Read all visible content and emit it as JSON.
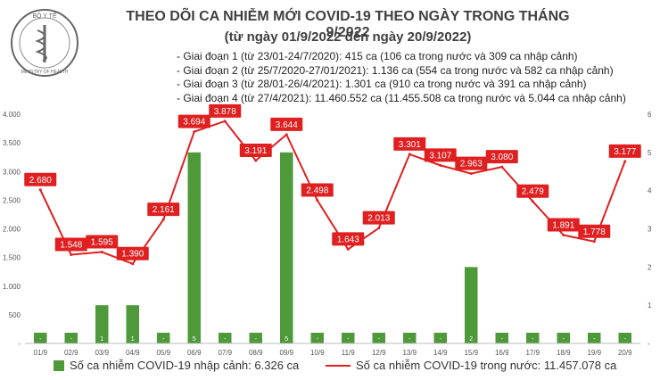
{
  "header": {
    "title": "THEO DÕI CA NHIỄM MỚI COVID-19 THEO NGÀY TRONG THÁNG 9/2022",
    "subtitle": "(từ ngày 01/9/2022 đến ngày 20/9/2022)",
    "phases": [
      "- Giai đoạn 1 (từ 23/01-24/7/2020): 415 ca (106 ca trong nước và 309 ca nhập cảnh)",
      "- Giai đoạn 2 (từ 25/7/2020-27/01/2021): 1.136 ca (554 ca trong nước và 582 ca nhập cảnh)",
      "- Giai đoạn 3 (từ 28/01-26/4/2021): 1.301 ca (910 ca trong nước và 391 ca nhập cảnh)",
      "- Giai đoạn 4 (từ 27/4/2021): 11.460.552 ca (11.455.508 ca trong nước và 5.044 ca nhập cảnh)"
    ],
    "logo_text": "BỘ Y TẾ",
    "logo_bottom_text": "MINISTRY OF HEALTH"
  },
  "legend": {
    "bar_label": "Số ca nhiễm COVID-19 nhập cảnh: 6.326 ca",
    "line_label": "Số ca nhiễm COVID-19 trong nước: 11.457.078 ca"
  },
  "chart_data": {
    "type": "bar+line",
    "categories": [
      "01/9",
      "02/9",
      "03/9",
      "04/9",
      "05/9",
      "06/9",
      "07/9",
      "08/9",
      "09/9",
      "10/9",
      "11/9",
      "12/9",
      "13/9",
      "14/9",
      "15/9",
      "16/9",
      "17/9",
      "18/9",
      "19/9",
      "20/9"
    ],
    "series": [
      {
        "name": "Số ca nhiễm COVID-19 nhập cảnh: 6.326 ca",
        "type": "bar",
        "axis": "right",
        "color": "#4e9a3a",
        "values": [
          0,
          0,
          1,
          1,
          0,
          5,
          0,
          0,
          5,
          0,
          0,
          0,
          0,
          0,
          2,
          0,
          0,
          0,
          0,
          0
        ],
        "labels": [
          "-",
          "-",
          "1",
          "1",
          "-",
          "5",
          "-",
          "-",
          "5",
          "-",
          "-",
          "-",
          "-",
          "-",
          "2",
          "-",
          "-",
          "-",
          "-",
          "-"
        ]
      },
      {
        "name": "Số ca nhiễm COVID-19 trong nước: 11.457.078 ca",
        "type": "line",
        "axis": "left",
        "color": "#e02020",
        "values": [
          2680,
          1548,
          1595,
          1390,
          2161,
          3694,
          3878,
          3191,
          3644,
          2498,
          1643,
          2013,
          3301,
          3107,
          2963,
          3080,
          2479,
          1891,
          1778,
          3177
        ],
        "labels": [
          "2.680",
          "1.548",
          "1.595",
          "1.390",
          "2.161",
          "3.694",
          "3.878",
          "3.191",
          "3.644",
          "2.498",
          "1.643",
          "2.013",
          "3.301",
          "3.107",
          "2.963",
          "3.080",
          "2.479",
          "1.891",
          "1.778",
          "3.177"
        ]
      }
    ],
    "y_left": {
      "range": [
        0,
        4000
      ],
      "ticks": [
        "-",
        "500",
        "1.000",
        "1.500",
        "2.000",
        "2.500",
        "3.000",
        "3.500",
        "4.000"
      ]
    },
    "y_right": {
      "range": [
        0,
        6
      ],
      "ticks": [
        "-",
        "1",
        "2",
        "3",
        "4",
        "5",
        "6"
      ]
    },
    "grid": false,
    "legend_position": "bottom"
  }
}
